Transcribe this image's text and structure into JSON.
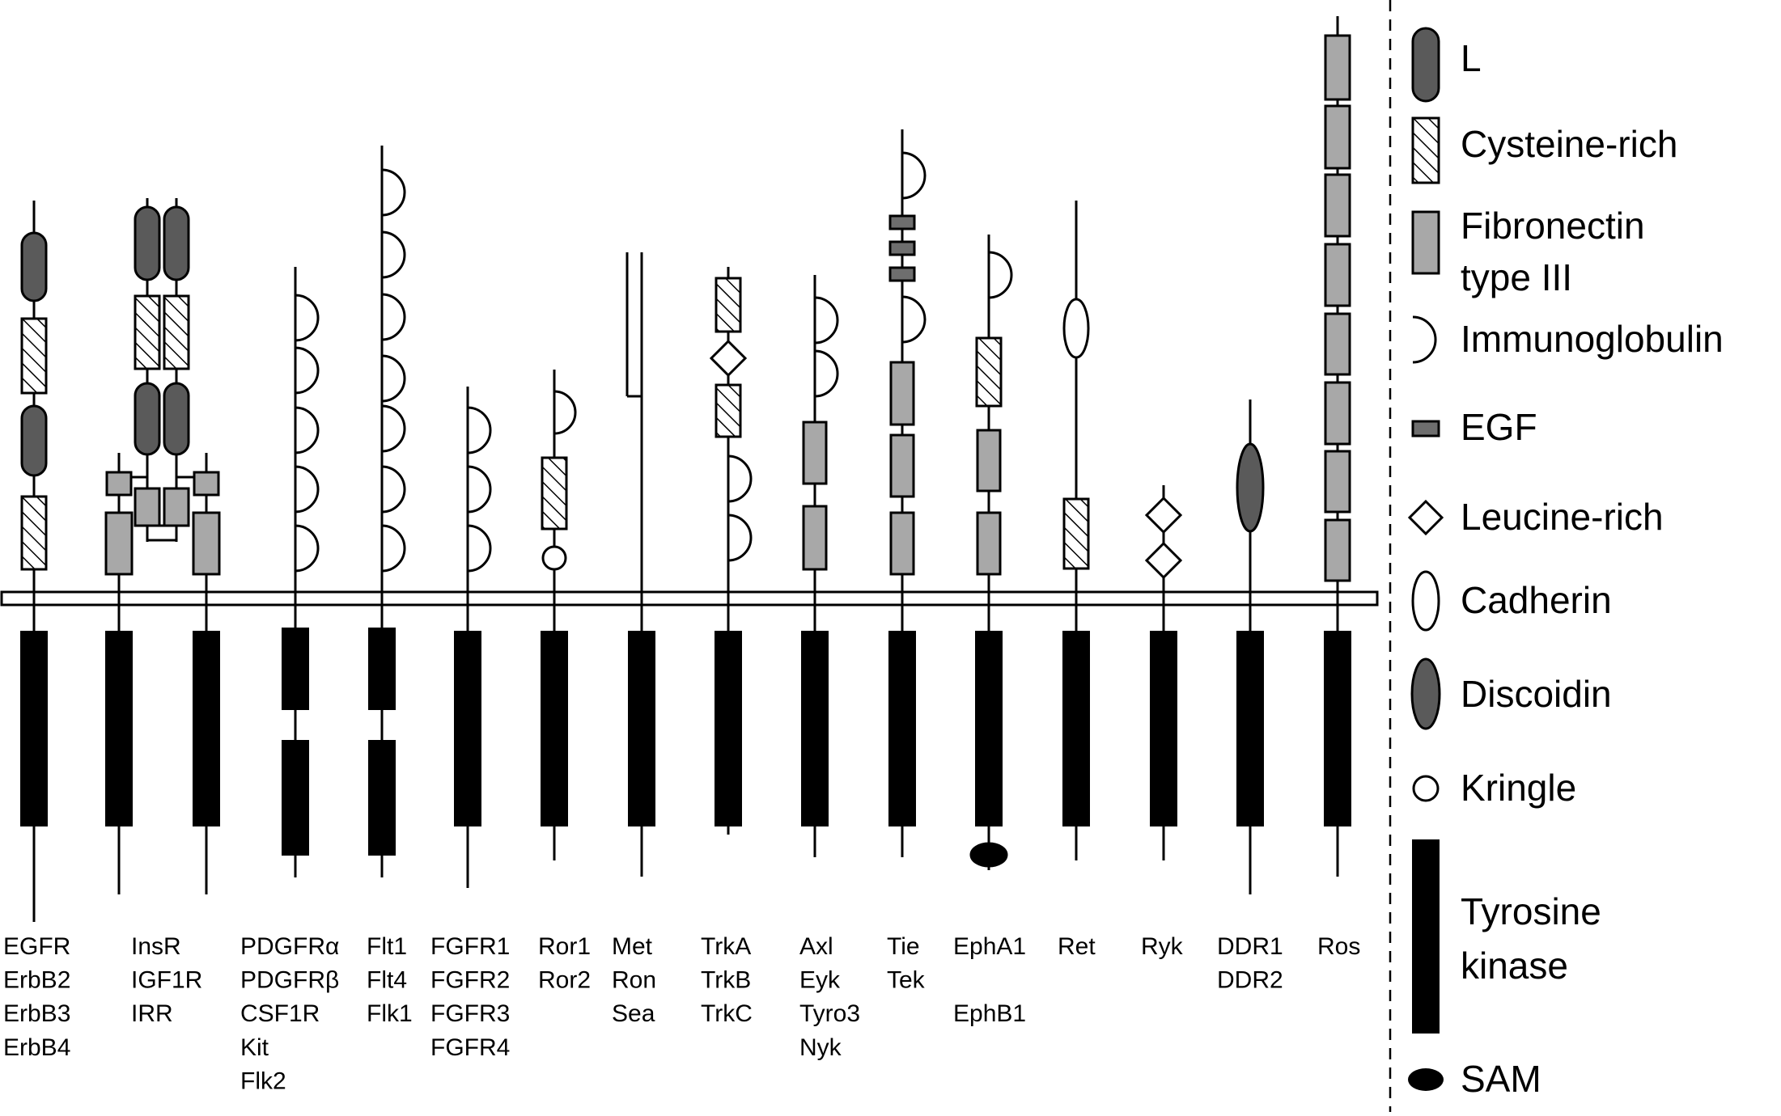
{
  "colors": {
    "l_domain": "#5a5a5a",
    "fibronectin": "#a8a8a8",
    "egf": "#6e6e6e",
    "discoidin": "#5a5a5a",
    "kinase": "#000000",
    "sam": "#000000"
  },
  "receptors": [
    {
      "id": "egfr",
      "names": [
        "EGFR",
        "ErbB2",
        "ErbB3",
        "ErbB4"
      ]
    },
    {
      "id": "insr",
      "names": [
        "InsR",
        "IGF1R",
        "IRR"
      ]
    },
    {
      "id": "pdgfr",
      "names": [
        "PDGFRα",
        "PDGFRβ",
        "CSF1R",
        "Kit",
        "Flk2"
      ]
    },
    {
      "id": "flt",
      "names": [
        "Flt1",
        "Flt4",
        "Flk1"
      ]
    },
    {
      "id": "fgfr",
      "names": [
        "FGFR1",
        "FGFR2",
        "FGFR3",
        "FGFR4"
      ]
    },
    {
      "id": "ror",
      "names": [
        "Ror1",
        "Ror2"
      ]
    },
    {
      "id": "met",
      "names": [
        "Met",
        "Ron",
        "Sea"
      ]
    },
    {
      "id": "trk",
      "names": [
        "TrkA",
        "TrkB",
        "TrkC"
      ]
    },
    {
      "id": "axl",
      "names": [
        "Axl",
        "Eyk",
        "Tyro3",
        "Nyk"
      ]
    },
    {
      "id": "tie",
      "names": [
        "Tie",
        "Tek"
      ]
    },
    {
      "id": "eph",
      "names": [
        "EphA1",
        "",
        "EphB1"
      ]
    },
    {
      "id": "ret",
      "names": [
        "Ret"
      ]
    },
    {
      "id": "ryk",
      "names": [
        "Ryk"
      ]
    },
    {
      "id": "ddr",
      "names": [
        "DDR1",
        "DDR2"
      ]
    },
    {
      "id": "ros",
      "names": [
        "Ros"
      ]
    }
  ],
  "legend": [
    {
      "id": "l",
      "icon": "l-domain-icon",
      "lines": [
        "L"
      ]
    },
    {
      "id": "cys",
      "icon": "cysteine-rich-icon",
      "lines": [
        "Cysteine-rich"
      ]
    },
    {
      "id": "fn",
      "icon": "fibronectin-icon",
      "lines": [
        "Fibronectin",
        "type III"
      ]
    },
    {
      "id": "ig",
      "icon": "immunoglobulin-icon",
      "lines": [
        "Immunoglobulin"
      ]
    },
    {
      "id": "egf",
      "icon": "egf-icon",
      "lines": [
        "EGF"
      ]
    },
    {
      "id": "leu",
      "icon": "leucine-rich-icon",
      "lines": [
        "Leucine-rich"
      ]
    },
    {
      "id": "cad",
      "icon": "cadherin-icon",
      "lines": [
        "Cadherin"
      ]
    },
    {
      "id": "dis",
      "icon": "discoidin-icon",
      "lines": [
        "Discoidin"
      ]
    },
    {
      "id": "kri",
      "icon": "kringle-icon",
      "lines": [
        "Kringle"
      ]
    },
    {
      "id": "tk",
      "icon": "tyrosine-kinase-icon",
      "lines": [
        "Tyrosine",
        "kinase"
      ]
    },
    {
      "id": "sam",
      "icon": "sam-icon",
      "lines": [
        "SAM"
      ]
    }
  ]
}
